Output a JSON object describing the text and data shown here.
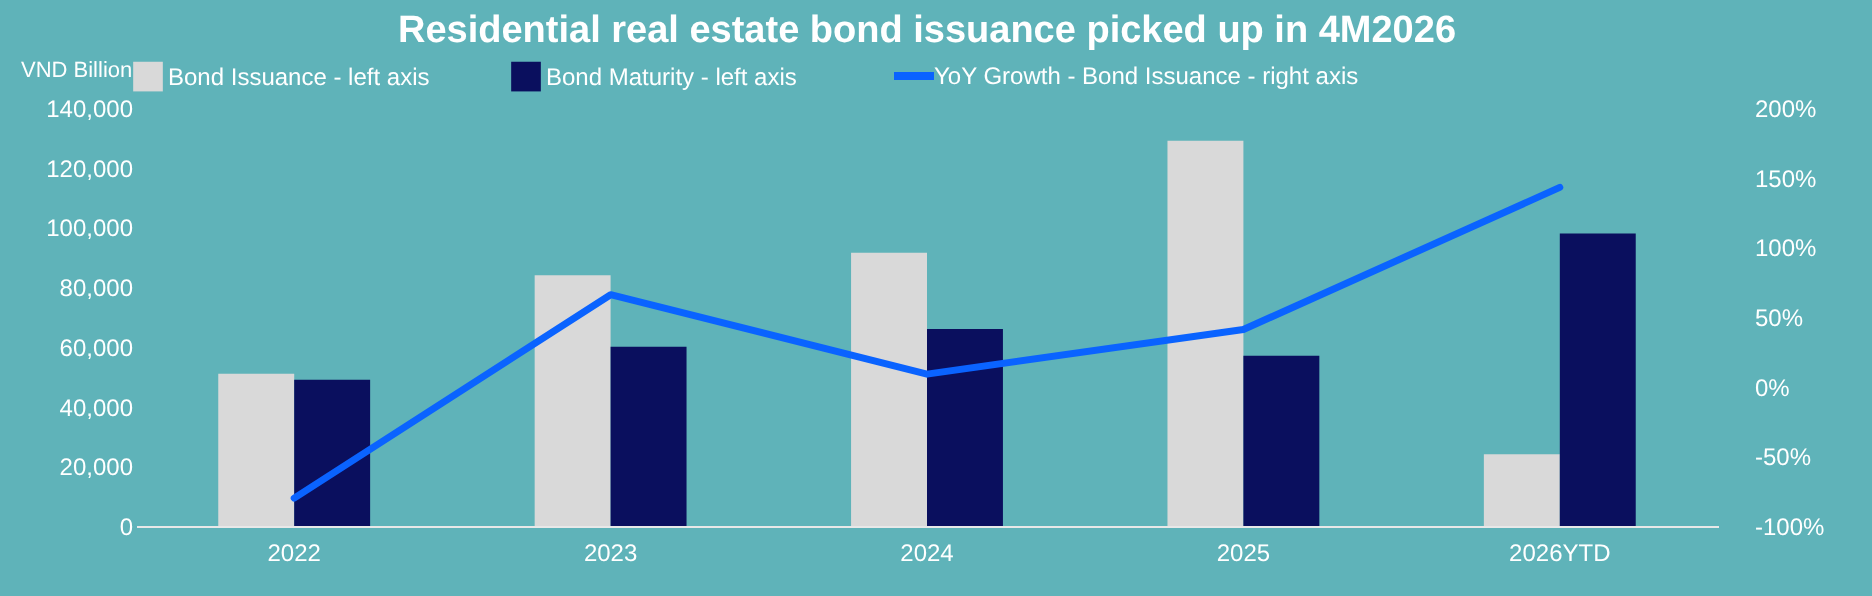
{
  "chart_data": {
    "type": "bar",
    "title": "Residential real estate bond issuance picked up in 4M2026",
    "ylabel": "VND Billion",
    "categories": [
      "2022",
      "2023",
      "2024",
      "2025",
      "2026YTD"
    ],
    "series": [
      {
        "name": "Bond Issuance - left axis",
        "color": "#d9d9d9",
        "values": [
          51000,
          84000,
          91500,
          129000,
          24000
        ]
      },
      {
        "name": "Bond Maturity - left axis",
        "color": "#0a0f5e",
        "values": [
          49000,
          60000,
          66000,
          57000,
          98000
        ]
      },
      {
        "name": "YoY Growth - Bond Issuance - right axis",
        "type": "line",
        "axis": "y2",
        "color": "#0a63ff",
        "values": [
          -80,
          66,
          9,
          41,
          143
        ]
      }
    ],
    "ylim": [
      0,
      140000
    ],
    "yticks": [
      {
        "value": 0,
        "label": "0"
      },
      {
        "value": 20000,
        "label": "20,000"
      },
      {
        "value": 40000,
        "label": "40,000"
      },
      {
        "value": 60000,
        "label": "60,000"
      },
      {
        "value": 80000,
        "label": "80,000"
      },
      {
        "value": 100000,
        "label": "100,000"
      },
      {
        "value": 120000,
        "label": "120,000"
      },
      {
        "value": 140000,
        "label": "140,000"
      }
    ],
    "y2lim": [
      -100,
      200
    ],
    "y2ticks": [
      {
        "value": -100,
        "label": "-100%"
      },
      {
        "value": -50,
        "label": "-50%"
      },
      {
        "value": 0,
        "label": "0%"
      },
      {
        "value": 50,
        "label": "50%"
      },
      {
        "value": 100,
        "label": "100%"
      },
      {
        "value": 150,
        "label": "150%"
      },
      {
        "value": 200,
        "label": "200%"
      }
    ],
    "grid": false,
    "legend": "top"
  }
}
